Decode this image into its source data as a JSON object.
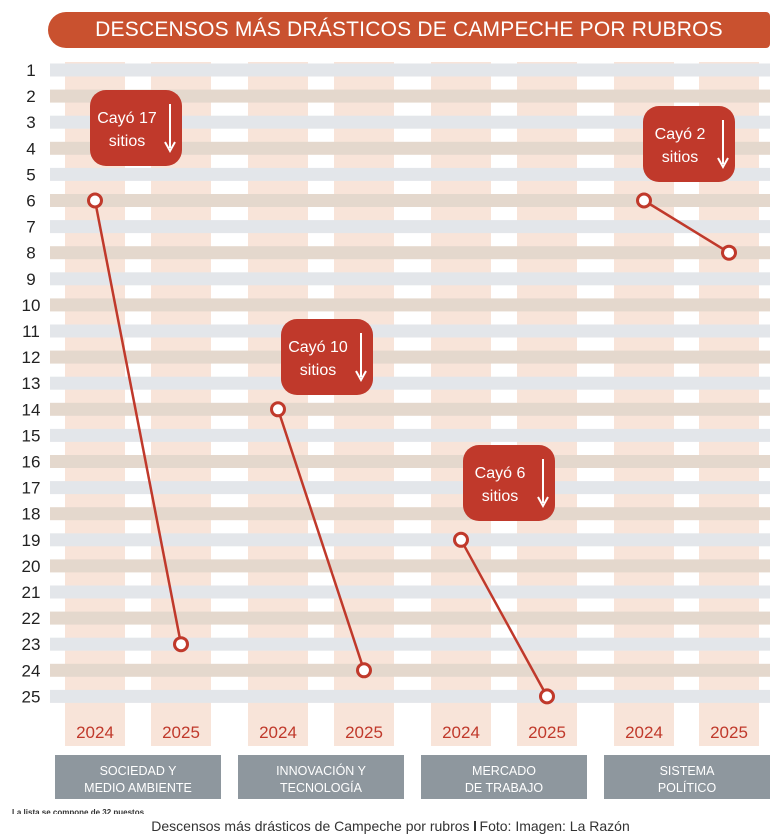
{
  "header": {
    "title": "DESCENSOS MÁS DRÁSTICOS DE CAMPECHE POR RUBROS"
  },
  "chart_data": {
    "type": "line",
    "title": "DESCENSOS MÁS DRÁSTICOS DE CAMPECHE POR RUBROS",
    "y_ticks": [
      1,
      2,
      3,
      4,
      5,
      6,
      7,
      8,
      9,
      10,
      11,
      12,
      13,
      14,
      15,
      16,
      17,
      18,
      19,
      20,
      21,
      22,
      23,
      24,
      25
    ],
    "ylim": [
      1,
      25
    ],
    "y_inverted": true,
    "x_ticks": [
      "2024",
      "2025"
    ],
    "series": [
      {
        "name": "SOCIEDAD Y MEDIO AMBIENTE",
        "name_lines": [
          "SOCIEDAD Y",
          "MEDIO AMBIENTE"
        ],
        "x": [
          "2024",
          "2025"
        ],
        "values": [
          6,
          23
        ],
        "drop_label": [
          "Cayó 17",
          "sitios"
        ]
      },
      {
        "name": "INNOVACIÓN Y TECNOLOGÍA",
        "name_lines": [
          "INNOVACIÓN Y",
          "TECNOLOGÍA"
        ],
        "x": [
          "2024",
          "2025"
        ],
        "values": [
          14,
          24
        ],
        "drop_label": [
          "Cayó 10",
          "sitios"
        ]
      },
      {
        "name": "MERCADO DE TRABAJO",
        "name_lines": [
          "MERCADO",
          "DE TRABAJO"
        ],
        "x": [
          "2024",
          "2025"
        ],
        "values": [
          19,
          25
        ],
        "drop_label": [
          "Cayó 6",
          "sitios"
        ]
      },
      {
        "name": "SISTEMA POLÍTICO",
        "name_lines": [
          "SISTEMA",
          "POLÍTICO"
        ],
        "x": [
          "2024",
          "2025"
        ],
        "values": [
          6,
          8
        ],
        "drop_label": [
          "Cayó 2",
          "sitios"
        ]
      }
    ],
    "colors": {
      "accent": "#c0392b",
      "title_bar": "#c9512f",
      "column": "#f8e4d9",
      "band_odd": "#e3e6ea",
      "band_even": "#e4d8cd",
      "category_box": "#8e979e",
      "year_text": "#c0392b"
    }
  },
  "footer": {
    "note": "La lista se compone de 32 puestos",
    "caption": "Descensos más drásticos de Campeche por rubros",
    "credit": "Foto: Imagen: La Razón"
  }
}
